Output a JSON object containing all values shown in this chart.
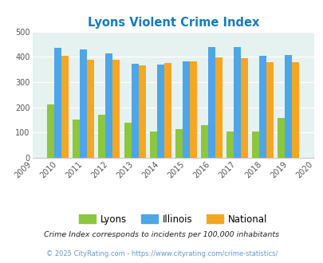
{
  "title": "Lyons Violent Crime Index",
  "all_years": [
    2009,
    2010,
    2011,
    2012,
    2013,
    2014,
    2015,
    2016,
    2017,
    2018,
    2019,
    2020
  ],
  "data_years": [
    2010,
    2011,
    2012,
    2013,
    2014,
    2015,
    2016,
    2017,
    2018,
    2019
  ],
  "lyons": [
    210,
    150,
    170,
    140,
    105,
    115,
    128,
    105,
    105,
    157
  ],
  "illinois": [
    435,
    428,
    415,
    372,
    368,
    383,
    438,
    438,
    404,
    408
  ],
  "national": [
    405,
    387,
    387,
    365,
    375,
    383,
    397,
    394,
    379,
    379
  ],
  "lyons_color": "#8dc63f",
  "illinois_color": "#4da6e8",
  "national_color": "#f5a623",
  "bg_color": "#e6f2f0",
  "ylim": [
    0,
    500
  ],
  "yticks": [
    0,
    100,
    200,
    300,
    400,
    500
  ],
  "legend_labels": [
    "Lyons",
    "Illinois",
    "National"
  ],
  "footnote1": "Crime Index corresponds to incidents per 100,000 inhabitants",
  "footnote2": "© 2025 CityRating.com - https://www.cityrating.com/crime-statistics/",
  "title_color": "#1a7ab5",
  "footnote1_color": "#222222",
  "footnote2_color": "#6699cc"
}
